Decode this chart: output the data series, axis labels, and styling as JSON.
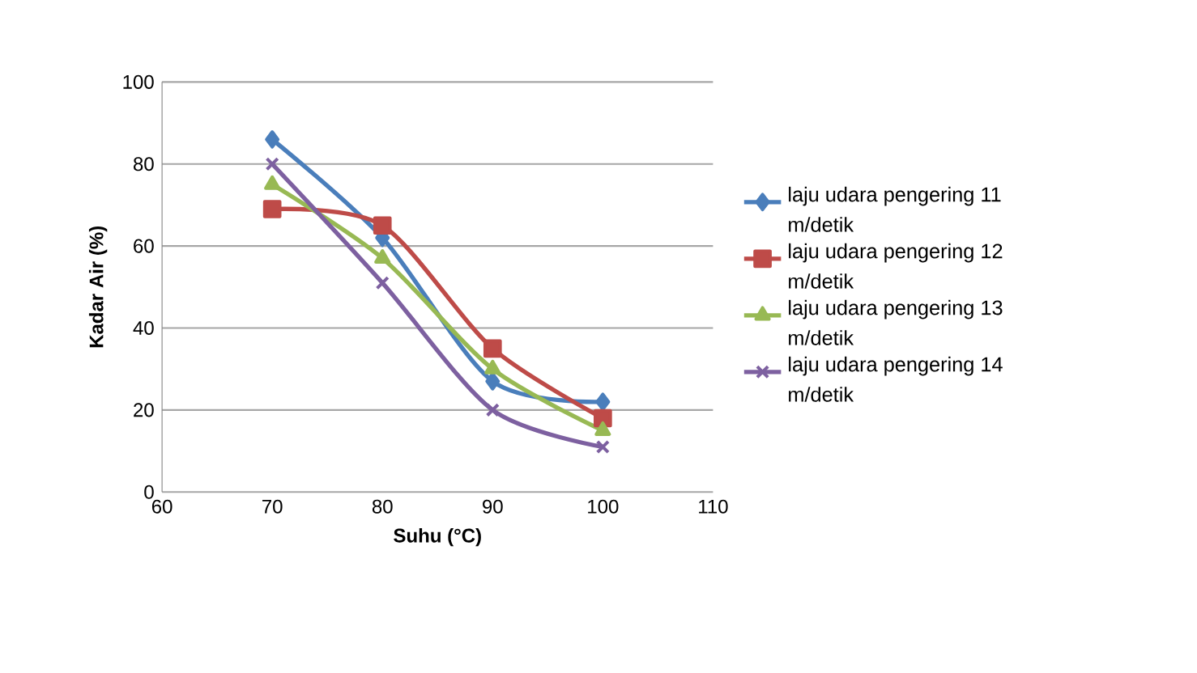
{
  "chart_data": {
    "type": "line",
    "xlabel": "Suhu (°C)",
    "ylabel": "Kadar Air (%)",
    "x": [
      70,
      80,
      90,
      100
    ],
    "series": [
      {
        "name": "laju udara pengering 11 m/detik",
        "color": "#4a7ebb",
        "marker": "diamond",
        "values": [
          86,
          62,
          27,
          22
        ]
      },
      {
        "name": "laju udara pengering 12 m/detik",
        "color": "#be4b48",
        "marker": "square",
        "values": [
          69,
          65,
          35,
          18
        ]
      },
      {
        "name": "laju udara pengering 13 m/detik",
        "color": "#98b954",
        "marker": "triangle",
        "values": [
          75,
          57,
          30,
          15
        ]
      },
      {
        "name": "laju udara pengering 14 m/detik",
        "color": "#7d60a0",
        "marker": "cross",
        "values": [
          80,
          51,
          20,
          11
        ]
      }
    ],
    "xlim": [
      60,
      110
    ],
    "xticks": [
      60,
      70,
      80,
      90,
      100,
      110
    ],
    "ylim": [
      0,
      100
    ],
    "yticks": [
      0,
      20,
      40,
      60,
      80,
      100
    ],
    "grid": "y",
    "legend": "right",
    "line_style": "solid"
  }
}
